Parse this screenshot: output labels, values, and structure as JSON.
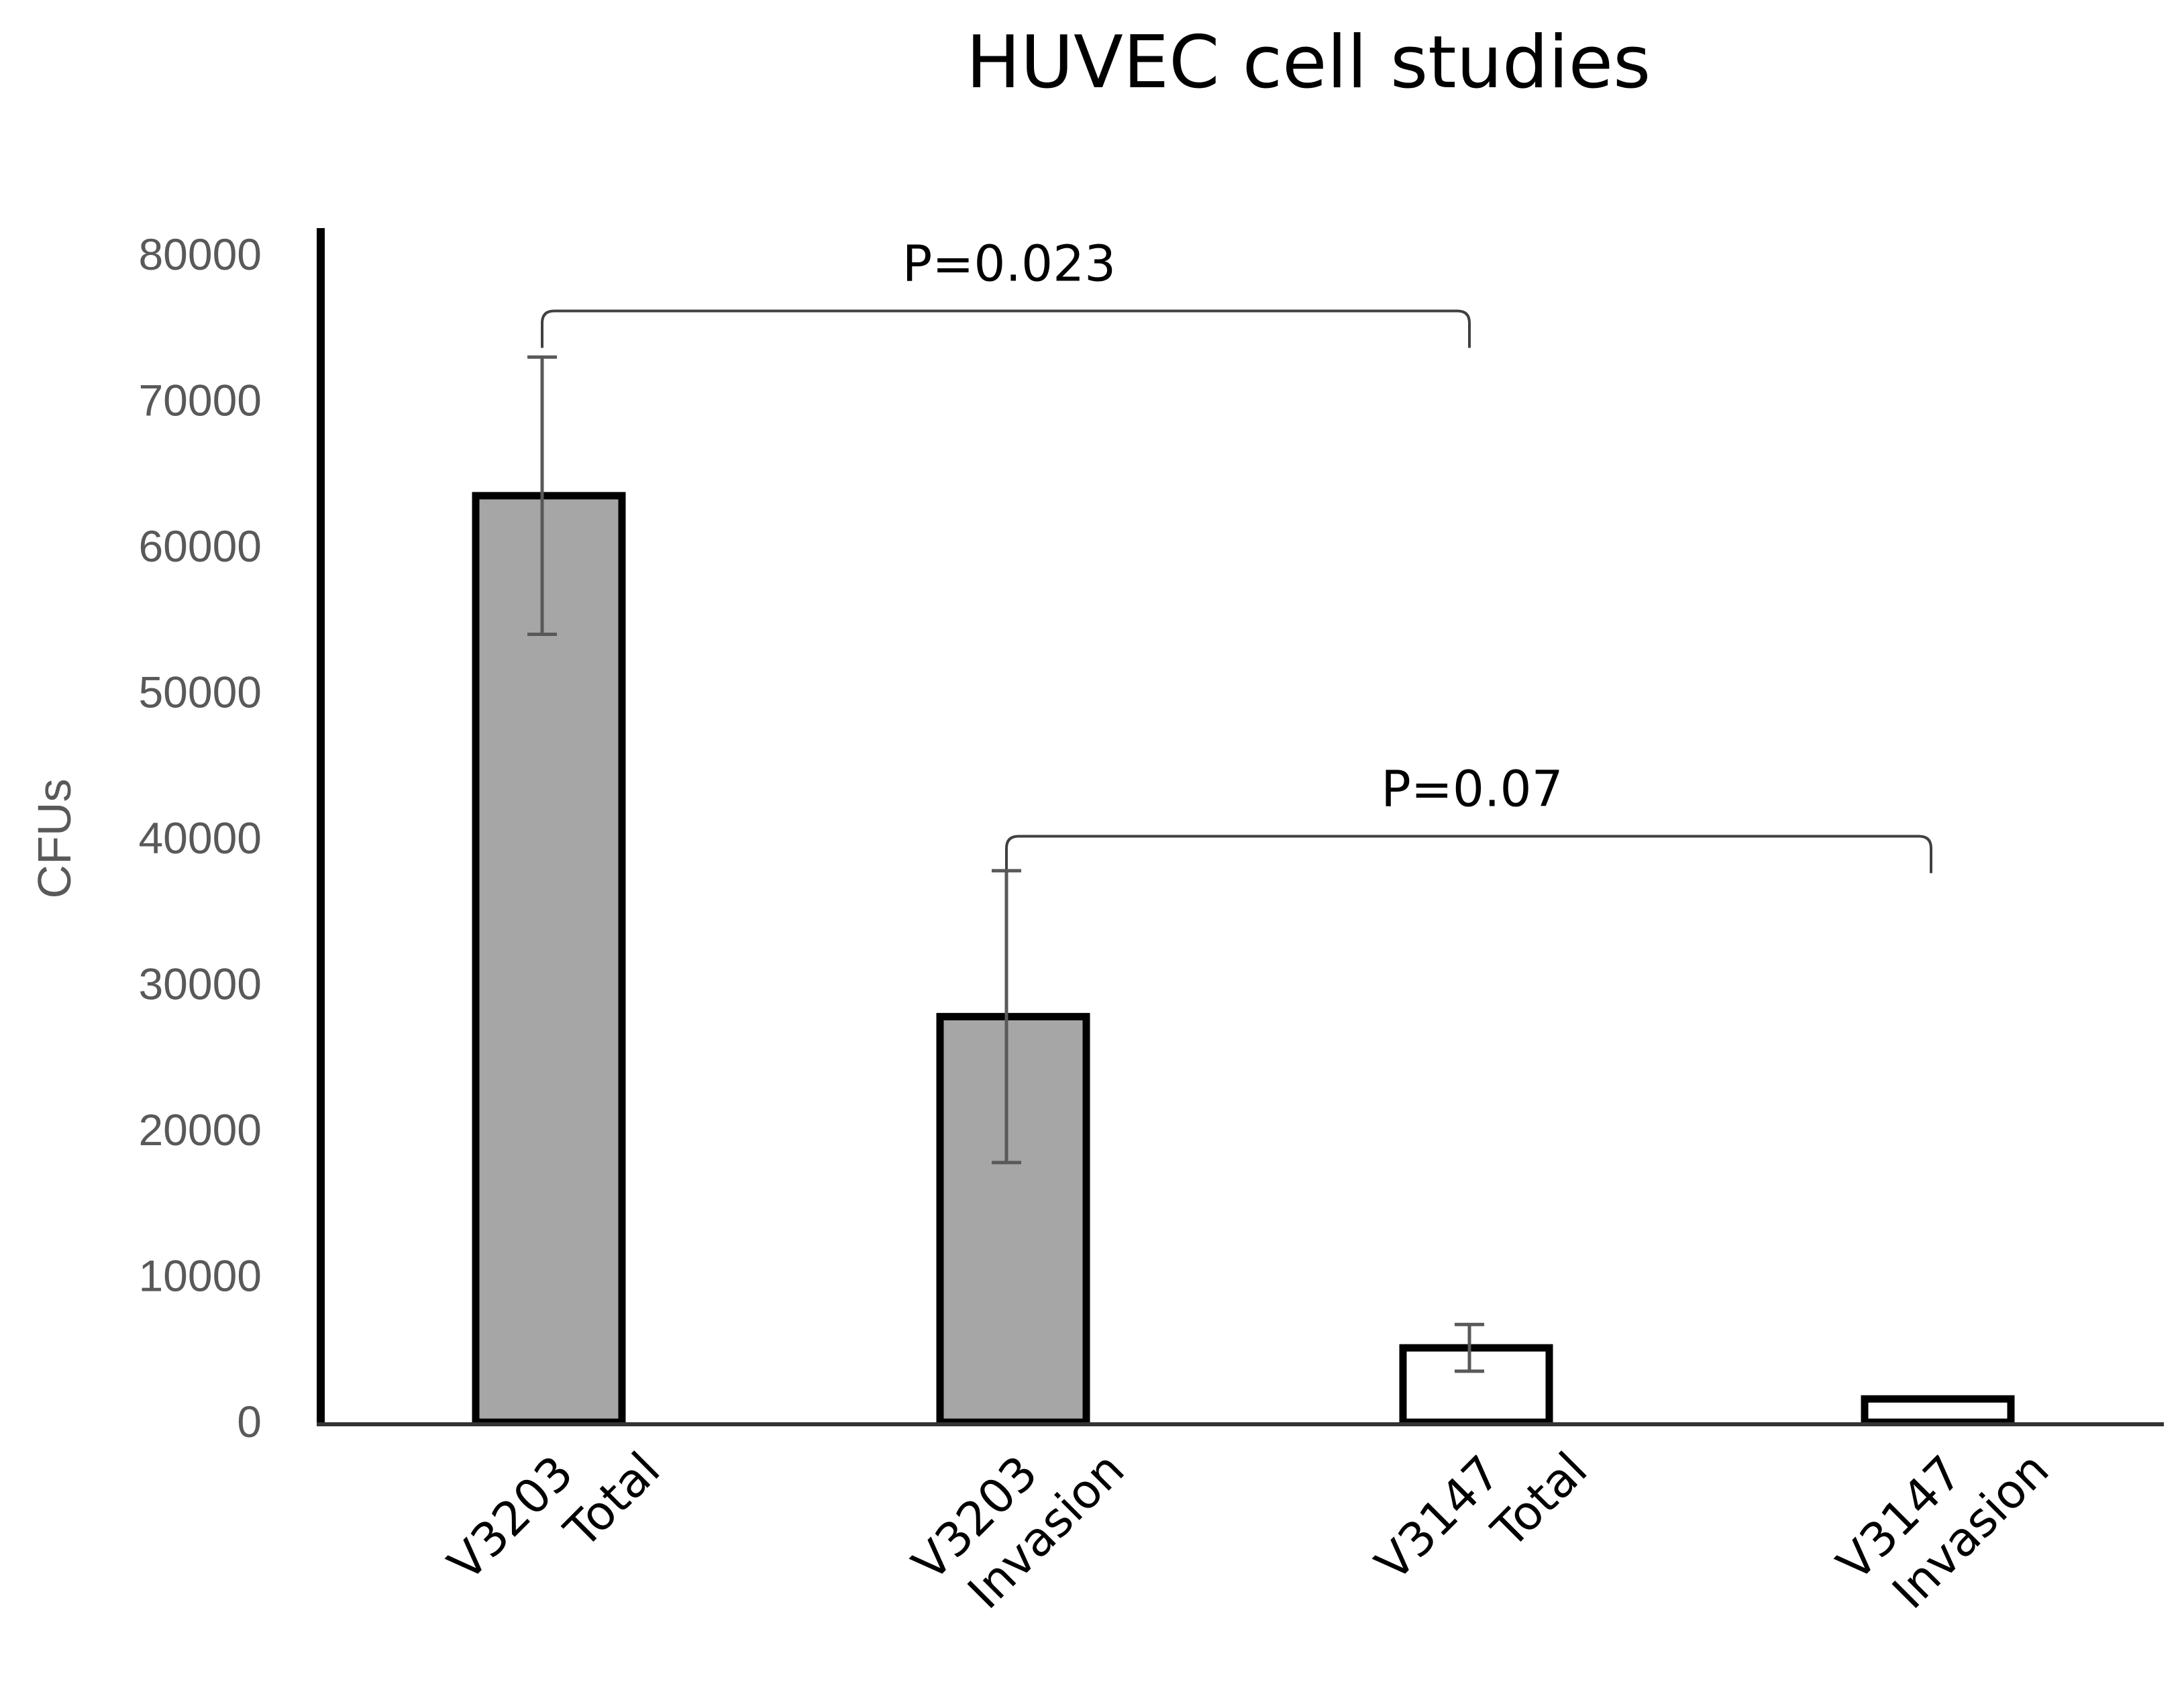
{
  "chart_data": {
    "type": "bar",
    "title": "HUVEC cell studies",
    "ylabel": "CFUs",
    "xlabel": "",
    "ylim": [
      0,
      80000
    ],
    "yticks": [
      0,
      10000,
      20000,
      30000,
      40000,
      50000,
      60000,
      70000,
      80000
    ],
    "grid": false,
    "categories": [
      [
        "V3203",
        "Total"
      ],
      [
        "V3203",
        "Invasion"
      ],
      [
        "V3147",
        "Total"
      ],
      [
        "V3147",
        "Invasion"
      ]
    ],
    "values": [
      63500,
      27800,
      5100,
      1600
    ],
    "errors": [
      9500,
      10000,
      1600,
      0
    ],
    "bar_colors": [
      "#a6a6a6",
      "#a6a6a6",
      "#ffffff",
      "#ffffff"
    ],
    "annotations": [
      {
        "text": "P=0.023",
        "from": 0,
        "to": 2,
        "y": 78000
      },
      {
        "text": "P=0.07",
        "from": 1,
        "to": 3,
        "y": 42000
      }
    ]
  }
}
